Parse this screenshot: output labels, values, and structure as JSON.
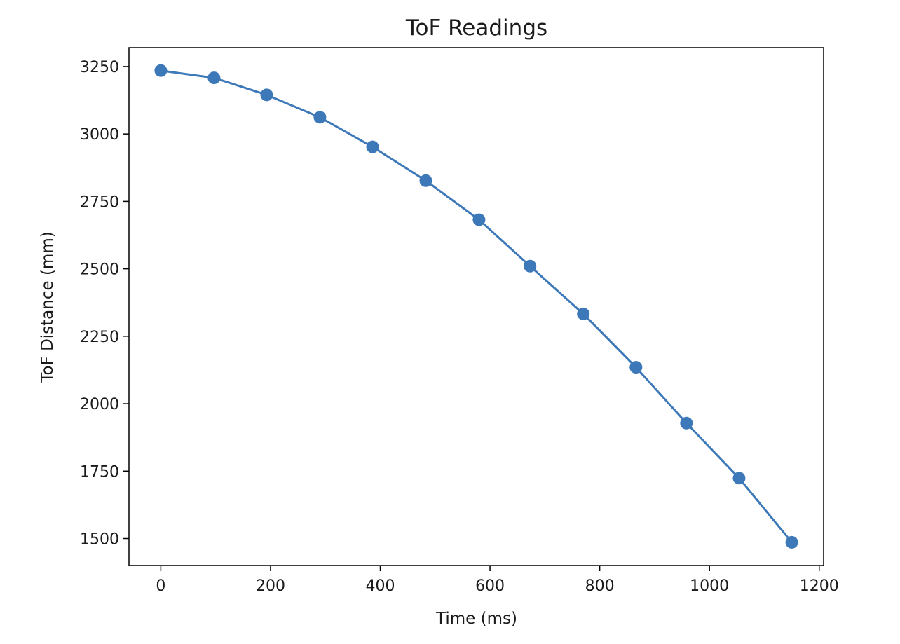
{
  "chart_data": {
    "type": "line",
    "title": "ToF Readings",
    "xlabel": "Time (ms)",
    "ylabel": "ToF Distance (mm)",
    "xlim": [
      -58,
      1208
    ],
    "ylim": [
      1400,
      3320
    ],
    "xticks": [
      0,
      200,
      400,
      600,
      800,
      1000,
      1200
    ],
    "yticks": [
      1500,
      1750,
      2000,
      2250,
      2500,
      2750,
      3000,
      3250
    ],
    "grid": false,
    "legend": "none",
    "series": [
      {
        "marker": "circle",
        "color": "#3d79b8",
        "x": [
          0,
          97,
          193,
          290,
          386,
          483,
          580,
          673,
          770,
          866,
          958,
          1054,
          1150
        ],
        "y": [
          3235,
          3208,
          3145,
          3062,
          2952,
          2827,
          2682,
          2510,
          2333,
          2135,
          1928,
          1724,
          1486
        ]
      }
    ]
  }
}
